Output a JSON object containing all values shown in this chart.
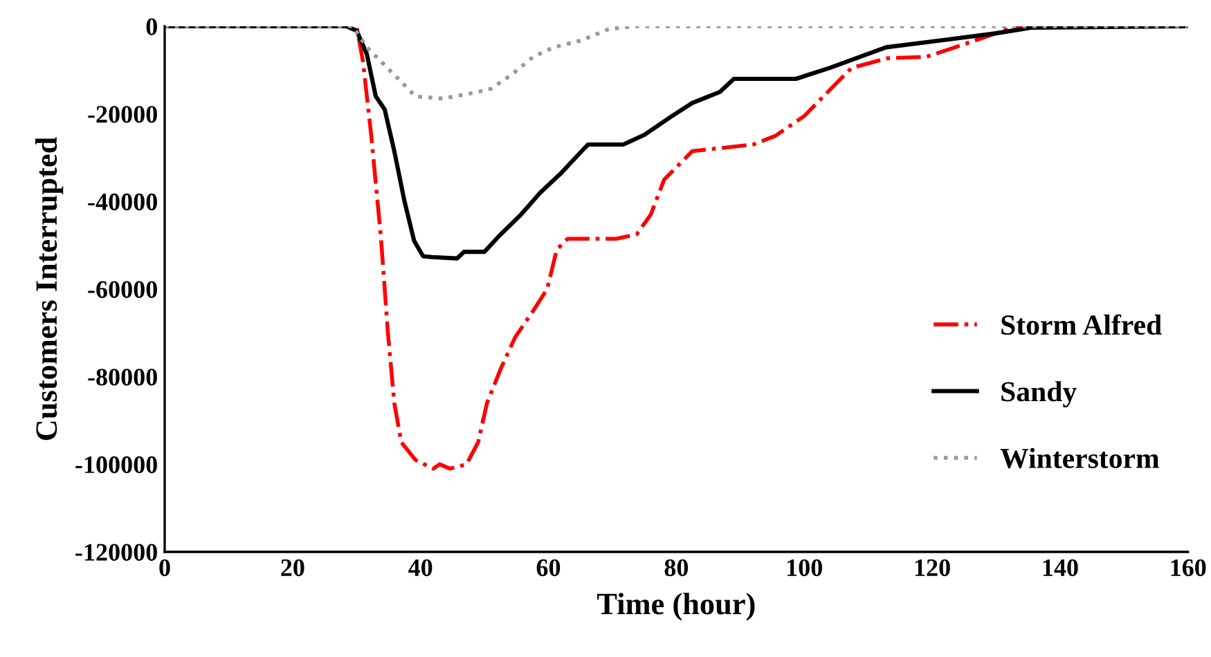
{
  "chart_data": {
    "type": "line",
    "xlabel": "Time (hour)",
    "ylabel": "Customers Interrupted",
    "xlim": [
      0,
      160
    ],
    "xticks": [
      0,
      20,
      40,
      60,
      80,
      100,
      120,
      140,
      160
    ],
    "ylim": [
      -120000,
      0
    ],
    "yticks": [
      -120000,
      -100000,
      -80000,
      -60000,
      -40000,
      -20000,
      0
    ],
    "grid": false,
    "legend": "right",
    "marker": "none",
    "series": [
      {
        "name": "Storm Alfred",
        "color": "#ff0000",
        "line_style": "dashdot",
        "x": [
          0,
          30,
          31,
          32.3,
          33.8,
          34.9,
          35.9,
          37,
          39.2,
          42,
          43,
          44.6,
          47.2,
          49,
          50.4,
          52.6,
          54.8,
          57.6,
          59.8,
          61.3,
          63,
          70.6,
          73.8,
          76,
          78.1,
          82.5,
          92,
          95.5,
          100,
          103,
          107.4,
          113,
          119,
          123.6,
          130,
          133,
          160
        ],
        "values": [
          0,
          0,
          -8000,
          -25000,
          -48000,
          -70000,
          -86000,
          -95000,
          -99000,
          -101000,
          -100000,
          -101000,
          -100000,
          -95000,
          -86000,
          -78000,
          -71000,
          -65000,
          -60000,
          -51000,
          -48500,
          -48500,
          -47500,
          -43000,
          -35000,
          -28500,
          -27000,
          -25000,
          -20500,
          -16000,
          -9500,
          -7300,
          -7000,
          -4800,
          -1600,
          0,
          0
        ]
      },
      {
        "name": "Sandy",
        "color": "#000000",
        "line_style": "solid",
        "x": [
          0,
          28.4,
          30,
          31.6,
          33,
          34.4,
          35.9,
          37.5,
          39,
          40.4,
          41.8,
          45.7,
          46.8,
          50,
          52.2,
          55.7,
          58.7,
          62,
          65.2,
          66.2,
          71.7,
          75,
          79.2,
          82.5,
          86.8,
          89,
          98.7,
          104,
          112.8,
          121.5,
          130,
          135.5,
          160
        ],
        "values": [
          0,
          0,
          -1000,
          -6300,
          -16000,
          -19000,
          -28500,
          -40000,
          -49000,
          -52500,
          -52700,
          -53000,
          -51500,
          -51500,
          -48000,
          -43000,
          -38000,
          -33500,
          -28500,
          -27000,
          -27000,
          -24800,
          -20600,
          -17500,
          -15000,
          -12000,
          -12000,
          -9500,
          -4800,
          -3200,
          -1600,
          -300,
          0
        ]
      },
      {
        "name": "Winterstorm",
        "color": "#999999",
        "line_style": "dotted",
        "x": [
          0,
          29.4,
          31.6,
          33.8,
          37,
          39.2,
          43.5,
          48.3,
          51,
          54.3,
          57.6,
          60.8,
          65.2,
          69.5,
          73.8,
          160
        ],
        "values": [
          0,
          0,
          -4800,
          -8000,
          -12700,
          -16000,
          -16500,
          -15200,
          -14300,
          -11000,
          -7000,
          -4800,
          -3200,
          -600,
          0,
          0
        ]
      }
    ]
  }
}
